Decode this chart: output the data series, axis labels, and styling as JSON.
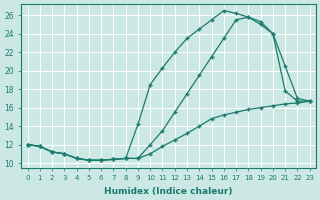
{
  "xlabel": "Humidex (Indice chaleur)",
  "bg_color": "#cce8e4",
  "grid_color": "#ffffff",
  "line_color": "#1a7a6e",
  "marker": "+",
  "xlim": [
    -0.5,
    23.5
  ],
  "ylim": [
    9.5,
    27.2
  ],
  "xticks": [
    0,
    1,
    2,
    3,
    4,
    5,
    6,
    7,
    8,
    9,
    10,
    11,
    12,
    13,
    14,
    15,
    16,
    17,
    18,
    19,
    20,
    21,
    22,
    23
  ],
  "yticks": [
    10,
    12,
    14,
    16,
    18,
    20,
    22,
    24,
    26
  ],
  "curve1_x": [
    0,
    1,
    2,
    3,
    4,
    5,
    6,
    7,
    8,
    9,
    10,
    11,
    12,
    13,
    14,
    15,
    16,
    17,
    18,
    19,
    20,
    21,
    22,
    23
  ],
  "curve1_y": [
    12.0,
    11.8,
    11.2,
    11.0,
    10.5,
    10.3,
    10.3,
    10.4,
    10.5,
    10.5,
    11.0,
    11.8,
    12.5,
    13.2,
    14.0,
    14.8,
    15.2,
    15.5,
    15.8,
    16.0,
    16.2,
    16.4,
    16.5,
    16.7
  ],
  "curve2_x": [
    0,
    1,
    2,
    3,
    4,
    5,
    6,
    7,
    8,
    9,
    10,
    11,
    12,
    13,
    14,
    15,
    16,
    17,
    18,
    19,
    20,
    21,
    22,
    23
  ],
  "curve2_y": [
    12.0,
    11.8,
    11.2,
    11.0,
    10.5,
    10.3,
    10.3,
    10.4,
    10.5,
    14.2,
    18.5,
    20.3,
    22.0,
    23.5,
    24.5,
    25.5,
    26.5,
    26.2,
    25.8,
    25.3,
    24.0,
    17.8,
    16.7,
    16.7
  ],
  "curve3_x": [
    0,
    1,
    2,
    3,
    4,
    5,
    6,
    7,
    8,
    9,
    10,
    11,
    12,
    13,
    14,
    15,
    16,
    17,
    18,
    19,
    20,
    21,
    22,
    23
  ],
  "curve3_y": [
    12.0,
    11.8,
    11.2,
    11.0,
    10.5,
    10.3,
    10.3,
    10.4,
    10.5,
    10.5,
    12.0,
    13.5,
    15.5,
    17.5,
    19.5,
    21.5,
    23.5,
    25.5,
    25.8,
    25.0,
    24.0,
    20.5,
    17.0,
    16.7
  ]
}
